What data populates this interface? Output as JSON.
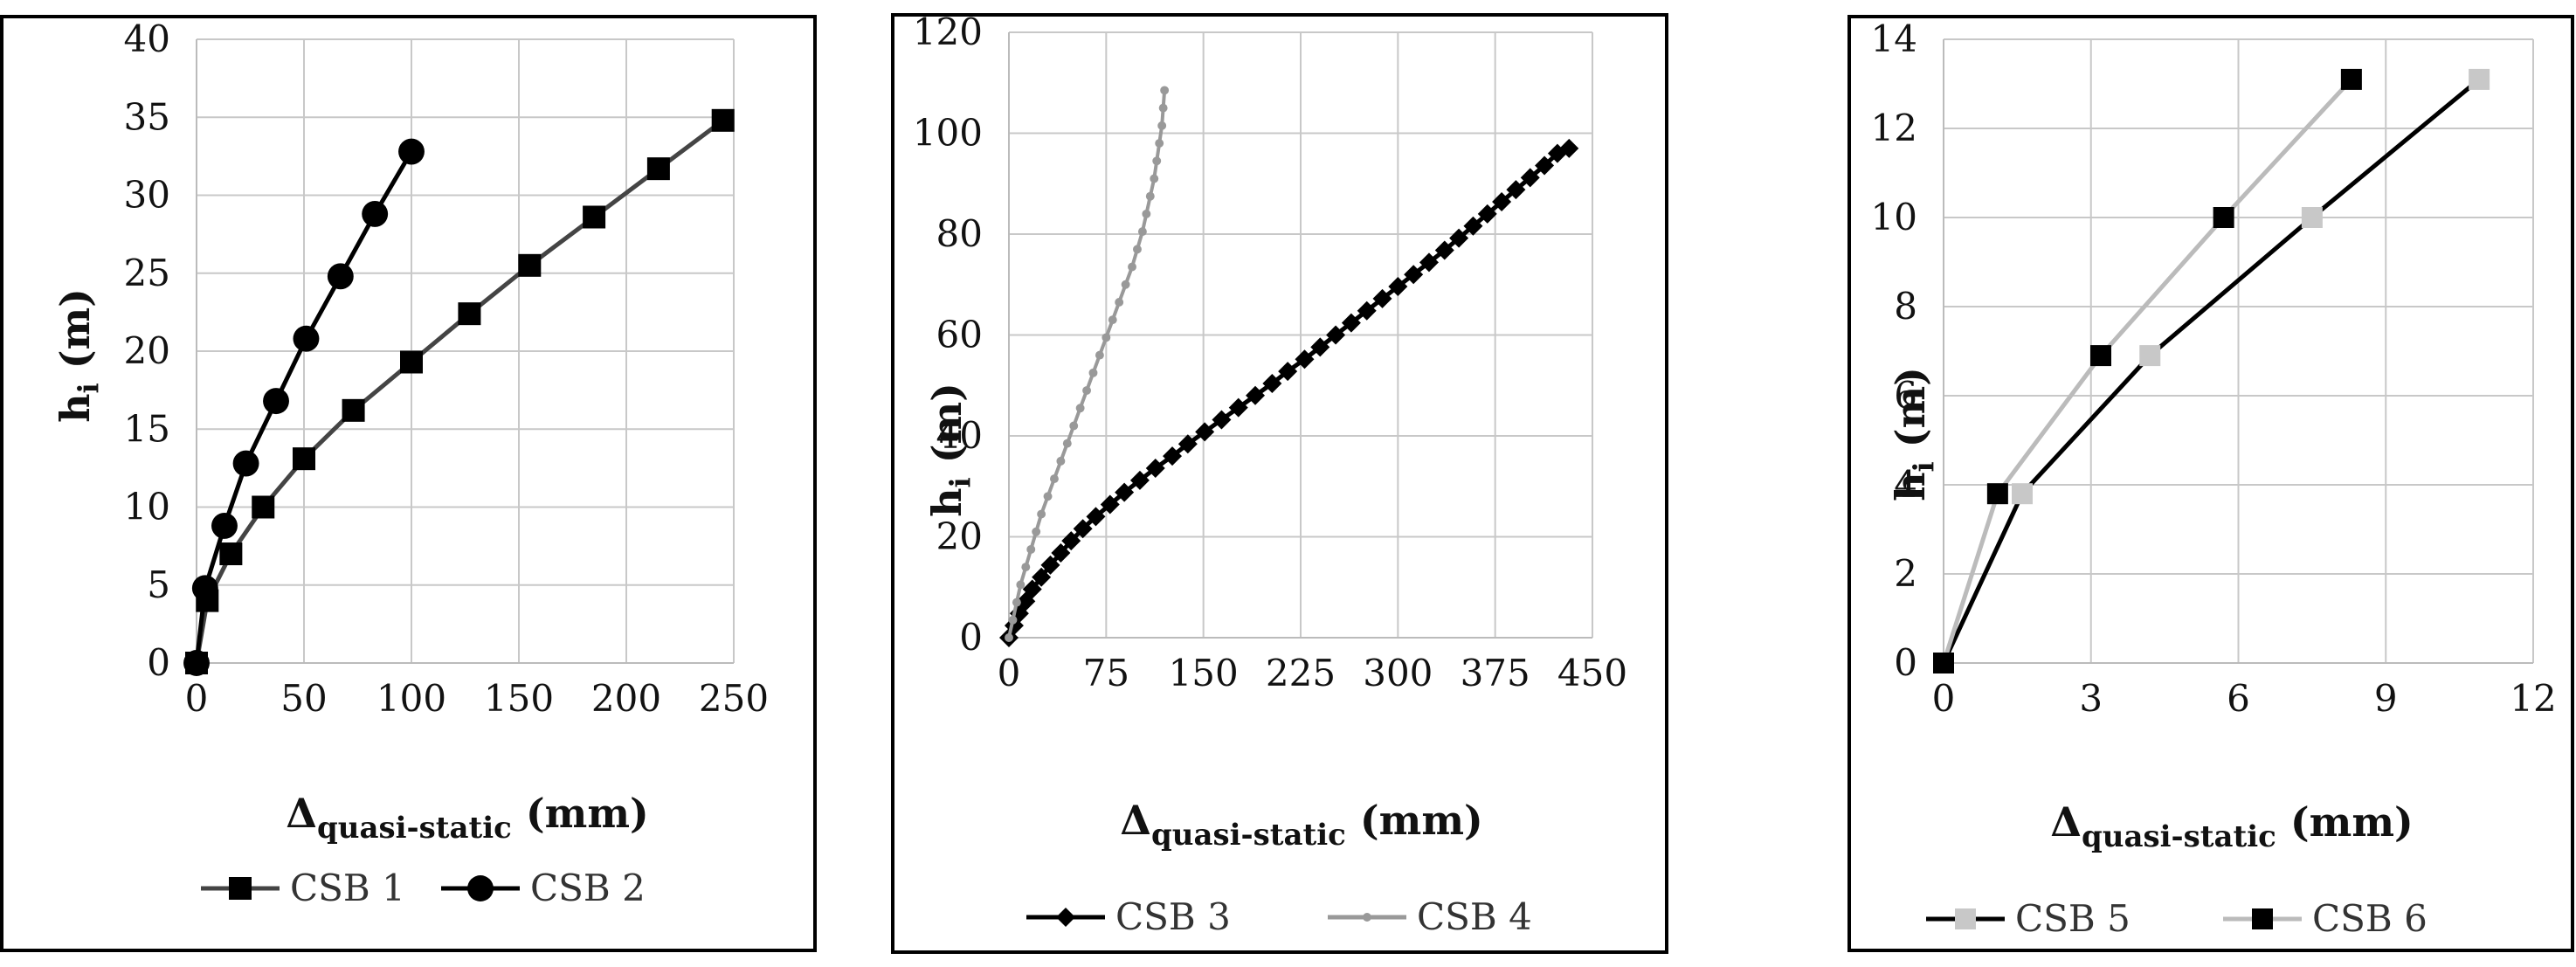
{
  "chart_data": [
    {
      "type": "line",
      "xlabel": "Δ",
      "xlabel_sub": "quasi-static",
      "xlabel_unit": "(mm)",
      "ylabel": "h",
      "ylabel_sub": "i",
      "ylabel_unit": "(m)",
      "xlim": [
        0,
        250
      ],
      "ylim": [
        0,
        40
      ],
      "xticks": [
        0,
        50,
        100,
        150,
        200,
        250
      ],
      "yticks": [
        0,
        5,
        10,
        15,
        20,
        25,
        30,
        35,
        40
      ],
      "grid": true,
      "legend_position": "bottom",
      "series": [
        {
          "name": "CSB 1",
          "marker": "square",
          "color": "#444444",
          "marker_color": "#000000",
          "x": [
            0,
            5,
            16,
            31,
            50,
            73,
            100,
            127,
            155,
            185,
            215,
            245
          ],
          "y": [
            0,
            4,
            7,
            10,
            13.1,
            16.2,
            19.3,
            22.4,
            25.5,
            28.6,
            31.7,
            34.8
          ]
        },
        {
          "name": "CSB 2",
          "marker": "circle",
          "color": "#000000",
          "marker_color": "#000000",
          "x": [
            0,
            4,
            13,
            23,
            37,
            51,
            67,
            83,
            100
          ],
          "y": [
            0,
            4.8,
            8.8,
            12.8,
            16.8,
            20.8,
            24.8,
            28.8,
            32.8
          ]
        }
      ]
    },
    {
      "type": "line",
      "xlabel": "Δ",
      "xlabel_sub": "quasi-static",
      "xlabel_unit": "(mm)",
      "ylabel": "h",
      "ylabel_sub": "i",
      "ylabel_unit": "(m)",
      "xlim": [
        0,
        450
      ],
      "ylim": [
        0,
        120
      ],
      "xticks": [
        0,
        75,
        150,
        225,
        300,
        375,
        450
      ],
      "yticks": [
        0,
        20,
        40,
        60,
        80,
        100,
        120
      ],
      "grid": true,
      "legend_position": "bottom",
      "series": [
        {
          "name": "CSB 3",
          "marker": "diamond",
          "color": "#000000",
          "marker_color": "#000000",
          "x": [
            0,
            4,
            8,
            13,
            18,
            25,
            32,
            40,
            48,
            57,
            67,
            78,
            89,
            101,
            113,
            126,
            138,
            151,
            164,
            177,
            190,
            203,
            215,
            228,
            240,
            252,
            264,
            276,
            288,
            300,
            312,
            324,
            336,
            347,
            358,
            369,
            380,
            391,
            402,
            413,
            423,
            432
          ],
          "y": [
            0,
            2.4,
            4.8,
            7.2,
            9.6,
            12,
            14.4,
            16.8,
            19.2,
            21.6,
            24,
            26.4,
            28.8,
            31.2,
            33.6,
            36,
            38.4,
            40.8,
            43.2,
            45.6,
            48,
            50.4,
            52.8,
            55.2,
            57.6,
            60,
            62.4,
            64.8,
            67.2,
            69.6,
            72,
            74.4,
            76.8,
            79.2,
            81.6,
            84,
            86.4,
            88.8,
            91.2,
            93.6,
            96,
            97
          ]
        },
        {
          "name": "CSB 4",
          "marker": "dot",
          "color": "#999999",
          "marker_color": "#999999",
          "x": [
            0,
            3,
            6,
            9,
            13,
            17,
            21,
            25,
            30,
            35,
            40,
            45,
            50,
            55,
            60,
            65,
            70,
            75,
            80,
            85,
            90,
            95,
            99,
            103,
            106,
            109,
            112,
            114,
            116,
            118,
            119,
            120
          ],
          "y": [
            0,
            3.5,
            7,
            10.5,
            14,
            17.5,
            21,
            24.5,
            28,
            31.5,
            35,
            38.5,
            42,
            45.5,
            49,
            52.5,
            56,
            59.5,
            63,
            66.5,
            70,
            73.5,
            77,
            80.5,
            84,
            87.5,
            91,
            94.5,
            98,
            101.5,
            105,
            108.5
          ]
        }
      ]
    },
    {
      "type": "line",
      "xlabel": "Δ",
      "xlabel_sub": "quasi-static",
      "xlabel_unit": "(mm)",
      "ylabel": "h",
      "ylabel_sub": "i",
      "ylabel_unit": "(m)",
      "xlim": [
        0,
        12
      ],
      "ylim": [
        0,
        14
      ],
      "xticks": [
        0,
        3,
        6,
        9,
        12
      ],
      "yticks": [
        0,
        2,
        4,
        6,
        8,
        10,
        12,
        14
      ],
      "grid": true,
      "legend_position": "bottom",
      "series": [
        {
          "name": "CSB 5",
          "marker": "square",
          "color": "#000000",
          "marker_color": "#c8c8c8",
          "x": [
            0,
            1.6,
            4.2,
            7.5,
            10.9
          ],
          "y": [
            0,
            3.8,
            6.9,
            10,
            13.1
          ]
        },
        {
          "name": "CSB 6",
          "marker": "square",
          "color": "#bbbbbb",
          "marker_color": "#000000",
          "x": [
            0,
            1.1,
            3.2,
            5.7,
            8.3
          ],
          "y": [
            0,
            3.8,
            6.9,
            10,
            13.1
          ]
        }
      ]
    }
  ]
}
